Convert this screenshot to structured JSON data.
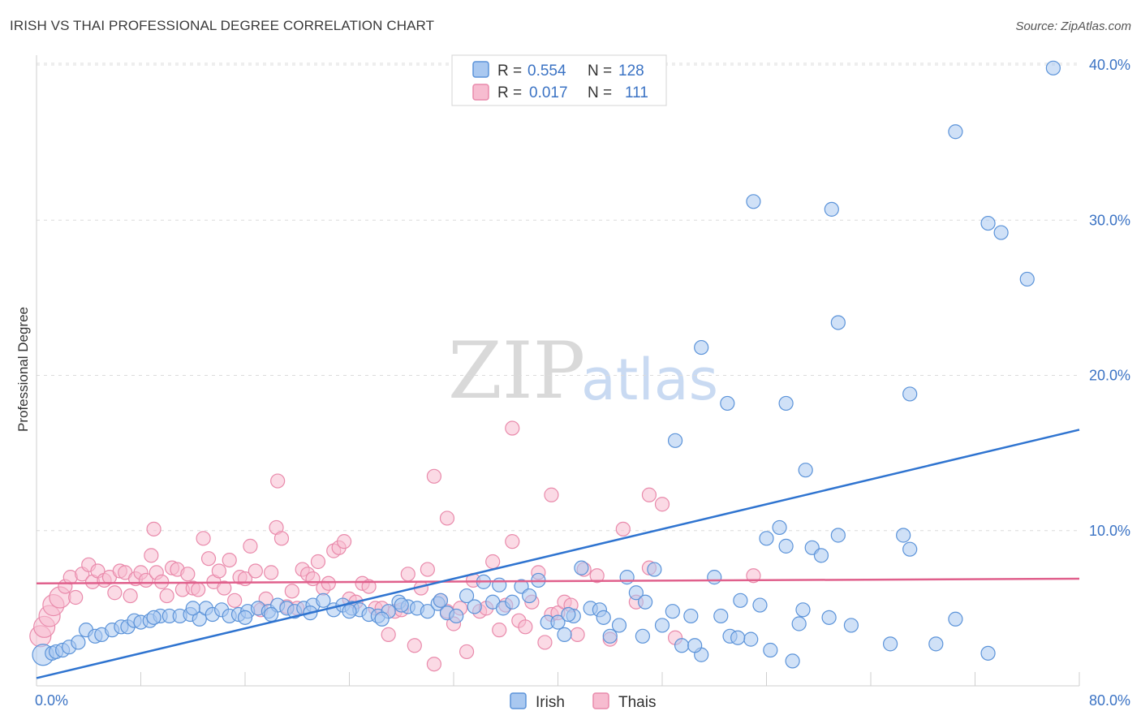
{
  "header": {
    "title": "IRISH VS THAI PROFESSIONAL DEGREE CORRELATION CHART",
    "source": "Source: ZipAtlas.com"
  },
  "watermark": {
    "zip": "ZIP",
    "atlas": "atlas"
  },
  "colors": {
    "irish_fill": "#a9c8f0",
    "irish_stroke": "#5b93d9",
    "irish_line": "#2f74d0",
    "thai_fill": "#f7bcd0",
    "thai_stroke": "#e98aab",
    "thai_line": "#e0608c",
    "tick_text": "#3b73c4",
    "grid": "#dcdcdc"
  },
  "legend": {
    "rows": [
      {
        "r_label": "R =",
        "r_value": "0.554",
        "n_label": "N =",
        "n_value": "128"
      },
      {
        "r_label": "R =",
        "r_value": "0.017",
        "n_label": "N =",
        "n_value": "111"
      }
    ]
  },
  "bottom_legend": {
    "items": [
      "Irish",
      "Thais"
    ]
  },
  "chart_data": {
    "type": "scatter",
    "ylabel": "Professional Degree",
    "xlim": [
      0,
      80
    ],
    "ylim": [
      0,
      40
    ],
    "x_tick_labels": [
      "0.0%",
      "80.0%"
    ],
    "y_ticks": [
      10,
      20,
      30,
      40
    ],
    "y_tick_labels": [
      "10.0%",
      "20.0%",
      "30.0%",
      "40.0%"
    ],
    "grid": "horizontal dashed",
    "legend_position": "top-center",
    "series": [
      {
        "name": "Irish",
        "trend": {
          "x": [
            0,
            80
          ],
          "y": [
            0.5,
            16.5
          ]
        },
        "points": [
          [
            0.5,
            2.0
          ],
          [
            1.2,
            2.1
          ],
          [
            1.5,
            2.2
          ],
          [
            2.0,
            2.3
          ],
          [
            2.5,
            2.5
          ],
          [
            3.2,
            2.8
          ],
          [
            3.8,
            3.6
          ],
          [
            4.5,
            3.2
          ],
          [
            5.0,
            3.3
          ],
          [
            5.8,
            3.6
          ],
          [
            6.5,
            3.8
          ],
          [
            7.0,
            3.8
          ],
          [
            7.5,
            4.2
          ],
          [
            8.0,
            4.1
          ],
          [
            8.7,
            4.2
          ],
          [
            9.5,
            4.5
          ],
          [
            10.2,
            4.5
          ],
          [
            11.0,
            4.5
          ],
          [
            11.8,
            4.6
          ],
          [
            12.5,
            4.3
          ],
          [
            13.0,
            5.0
          ],
          [
            13.5,
            4.6
          ],
          [
            14.2,
            4.9
          ],
          [
            14.8,
            4.5
          ],
          [
            15.5,
            4.6
          ],
          [
            16.2,
            4.8
          ],
          [
            17.0,
            5.0
          ],
          [
            17.8,
            4.8
          ],
          [
            18.5,
            5.2
          ],
          [
            19.2,
            5.0
          ],
          [
            19.8,
            4.8
          ],
          [
            20.5,
            5.0
          ],
          [
            21.2,
            5.2
          ],
          [
            22.0,
            5.5
          ],
          [
            22.8,
            4.9
          ],
          [
            23.5,
            5.2
          ],
          [
            24.2,
            5.0
          ],
          [
            24.8,
            4.9
          ],
          [
            25.5,
            4.6
          ],
          [
            26.2,
            4.5
          ],
          [
            27.0,
            4.8
          ],
          [
            27.8,
            5.4
          ],
          [
            28.5,
            5.1
          ],
          [
            29.2,
            5.0
          ],
          [
            30.0,
            4.8
          ],
          [
            30.8,
            5.3
          ],
          [
            31.5,
            4.7
          ],
          [
            32.2,
            4.5
          ],
          [
            33.0,
            5.8
          ],
          [
            33.6,
            5.1
          ],
          [
            34.3,
            6.7
          ],
          [
            35.0,
            5.4
          ],
          [
            35.8,
            5.0
          ],
          [
            36.5,
            5.4
          ],
          [
            37.2,
            6.4
          ],
          [
            37.8,
            5.8
          ],
          [
            38.5,
            6.8
          ],
          [
            39.2,
            4.1
          ],
          [
            40.0,
            4.1
          ],
          [
            40.5,
            3.3
          ],
          [
            41.2,
            4.5
          ],
          [
            41.8,
            7.6
          ],
          [
            42.5,
            5.0
          ],
          [
            43.2,
            4.9
          ],
          [
            44.0,
            3.2
          ],
          [
            44.7,
            3.9
          ],
          [
            45.3,
            7.0
          ],
          [
            46.0,
            6.0
          ],
          [
            46.7,
            5.4
          ],
          [
            47.4,
            7.5
          ],
          [
            48.0,
            3.9
          ],
          [
            48.8,
            4.8
          ],
          [
            49.5,
            2.6
          ],
          [
            50.2,
            4.5
          ],
          [
            51.0,
            2.0
          ],
          [
            52.0,
            7.0
          ],
          [
            52.5,
            4.5
          ],
          [
            53.2,
            3.2
          ],
          [
            54.0,
            5.5
          ],
          [
            54.8,
            3.0
          ],
          [
            55.5,
            5.2
          ],
          [
            56.3,
            2.3
          ],
          [
            57.0,
            10.2
          ],
          [
            57.5,
            9.0
          ],
          [
            58.0,
            1.6
          ],
          [
            58.8,
            4.9
          ],
          [
            59.5,
            8.9
          ],
          [
            60.2,
            8.4
          ],
          [
            60.8,
            4.4
          ],
          [
            61.5,
            9.7
          ],
          [
            62.5,
            3.9
          ],
          [
            65.5,
            2.7
          ],
          [
            66.5,
            9.7
          ],
          [
            67.0,
            8.8
          ],
          [
            69.0,
            2.7
          ],
          [
            70.5,
            4.3
          ],
          [
            73.0,
            2.1
          ],
          [
            49.0,
            15.8
          ],
          [
            51.0,
            21.8
          ],
          [
            53.0,
            18.2
          ],
          [
            57.5,
            18.2
          ],
          [
            59.0,
            13.9
          ],
          [
            61.5,
            23.4
          ],
          [
            55.0,
            31.2
          ],
          [
            61.0,
            30.7
          ],
          [
            67.0,
            18.8
          ],
          [
            70.5,
            35.7
          ],
          [
            73.0,
            29.8
          ],
          [
            74.0,
            29.2
          ],
          [
            76.0,
            26.2
          ],
          [
            78.0,
            39.8
          ],
          [
            12.0,
            5.0
          ],
          [
            16.0,
            4.4
          ],
          [
            21.0,
            4.7
          ],
          [
            26.5,
            4.3
          ],
          [
            31.0,
            5.5
          ],
          [
            35.5,
            6.5
          ],
          [
            40.8,
            4.6
          ],
          [
            43.5,
            4.4
          ],
          [
            46.5,
            3.2
          ],
          [
            50.5,
            2.6
          ],
          [
            53.8,
            3.1
          ],
          [
            56.0,
            9.5
          ],
          [
            58.5,
            4.0
          ],
          [
            9.0,
            4.4
          ],
          [
            18.0,
            4.6
          ],
          [
            24.0,
            4.8
          ],
          [
            28.0,
            5.2
          ]
        ]
      },
      {
        "name": "Thais",
        "trend": {
          "x": [
            0,
            80
          ],
          "y": [
            6.6,
            6.9
          ]
        },
        "points": [
          [
            0.3,
            3.2
          ],
          [
            0.6,
            3.8
          ],
          [
            1.0,
            4.5
          ],
          [
            1.3,
            5.2
          ],
          [
            1.8,
            5.7
          ],
          [
            2.2,
            6.4
          ],
          [
            2.6,
            7.0
          ],
          [
            3.0,
            5.7
          ],
          [
            3.5,
            7.2
          ],
          [
            4.0,
            7.8
          ],
          [
            4.3,
            6.7
          ],
          [
            4.7,
            7.4
          ],
          [
            5.2,
            6.8
          ],
          [
            5.6,
            7.0
          ],
          [
            6.0,
            6.0
          ],
          [
            6.4,
            7.4
          ],
          [
            6.8,
            7.3
          ],
          [
            7.2,
            5.8
          ],
          [
            7.6,
            6.9
          ],
          [
            8.0,
            7.3
          ],
          [
            8.4,
            6.8
          ],
          [
            8.8,
            8.4
          ],
          [
            9.2,
            7.3
          ],
          [
            9.6,
            6.7
          ],
          [
            10.0,
            5.8
          ],
          [
            10.4,
            7.6
          ],
          [
            10.8,
            7.5
          ],
          [
            11.2,
            6.2
          ],
          [
            11.6,
            7.2
          ],
          [
            12.0,
            6.3
          ],
          [
            12.4,
            6.2
          ],
          [
            12.8,
            9.5
          ],
          [
            13.2,
            8.2
          ],
          [
            13.6,
            6.7
          ],
          [
            14.0,
            7.4
          ],
          [
            14.4,
            6.3
          ],
          [
            14.8,
            8.1
          ],
          [
            15.2,
            5.5
          ],
          [
            15.6,
            7.0
          ],
          [
            16.0,
            6.9
          ],
          [
            16.4,
            9.0
          ],
          [
            16.8,
            7.4
          ],
          [
            17.2,
            4.9
          ],
          [
            17.6,
            5.6
          ],
          [
            18.0,
            7.3
          ],
          [
            18.4,
            10.2
          ],
          [
            18.8,
            9.5
          ],
          [
            19.2,
            5.1
          ],
          [
            19.6,
            6.1
          ],
          [
            20.0,
            5.0
          ],
          [
            20.4,
            7.5
          ],
          [
            20.8,
            7.2
          ],
          [
            21.2,
            6.9
          ],
          [
            21.6,
            8.0
          ],
          [
            22.0,
            6.3
          ],
          [
            22.4,
            6.6
          ],
          [
            22.8,
            8.7
          ],
          [
            23.2,
            8.9
          ],
          [
            23.6,
            9.3
          ],
          [
            24.0,
            5.6
          ],
          [
            24.5,
            5.4
          ],
          [
            25.0,
            6.6
          ],
          [
            25.5,
            6.4
          ],
          [
            26.0,
            5.0
          ],
          [
            26.5,
            5.0
          ],
          [
            27.0,
            3.3
          ],
          [
            27.5,
            4.8
          ],
          [
            28.0,
            4.9
          ],
          [
            28.5,
            7.2
          ],
          [
            29.0,
            2.6
          ],
          [
            29.5,
            6.3
          ],
          [
            30.0,
            7.5
          ],
          [
            30.5,
            1.4
          ],
          [
            31.0,
            5.5
          ],
          [
            31.5,
            4.8
          ],
          [
            32.0,
            4.0
          ],
          [
            32.5,
            5.0
          ],
          [
            33.0,
            2.2
          ],
          [
            33.5,
            6.8
          ],
          [
            34.0,
            4.8
          ],
          [
            34.5,
            5.0
          ],
          [
            35.0,
            8.0
          ],
          [
            35.5,
            3.6
          ],
          [
            36.0,
            5.2
          ],
          [
            36.5,
            9.3
          ],
          [
            37.0,
            4.2
          ],
          [
            37.5,
            3.8
          ],
          [
            38.0,
            5.4
          ],
          [
            38.5,
            7.3
          ],
          [
            39.0,
            2.8
          ],
          [
            39.5,
            4.6
          ],
          [
            40.0,
            4.7
          ],
          [
            40.5,
            5.4
          ],
          [
            41.0,
            5.2
          ],
          [
            41.5,
            3.3
          ],
          [
            42.0,
            7.5
          ],
          [
            43.0,
            7.1
          ],
          [
            44.0,
            3.0
          ],
          [
            45.0,
            10.1
          ],
          [
            46.0,
            5.4
          ],
          [
            47.0,
            7.6
          ],
          [
            48.0,
            11.7
          ],
          [
            49.0,
            3.1
          ],
          [
            9.0,
            10.1
          ],
          [
            18.5,
            13.2
          ],
          [
            30.5,
            13.5
          ],
          [
            31.5,
            10.8
          ],
          [
            36.5,
            16.6
          ],
          [
            39.5,
            12.3
          ],
          [
            47.0,
            12.3
          ],
          [
            55.0,
            7.1
          ]
        ]
      }
    ]
  }
}
